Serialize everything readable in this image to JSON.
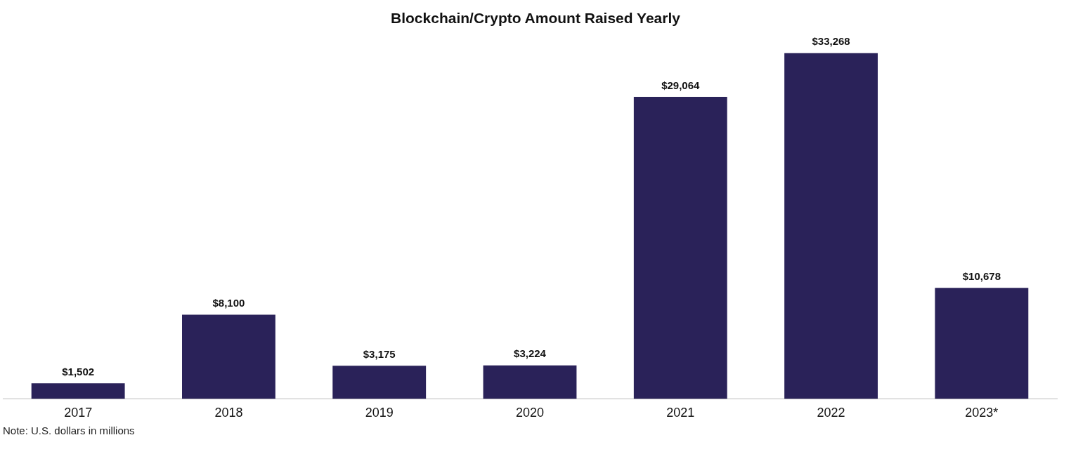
{
  "chart_data": {
    "type": "bar",
    "title": "Blockchain/Crypto Amount Raised Yearly",
    "categories": [
      "2017",
      "2018",
      "2019",
      "2020",
      "2021",
      "2022",
      "2023*"
    ],
    "values": [
      1502,
      8100,
      3175,
      3224,
      29064,
      33268,
      10678
    ],
    "value_labels": [
      "$1,502",
      "$8,100",
      "$3,175",
      "$3,224",
      "$29,064",
      "$33,268",
      "$10,678"
    ],
    "color": "#2a2259",
    "grid": false,
    "legend": false,
    "annotations": [
      "Note: U.S. dollars in millions"
    ]
  }
}
